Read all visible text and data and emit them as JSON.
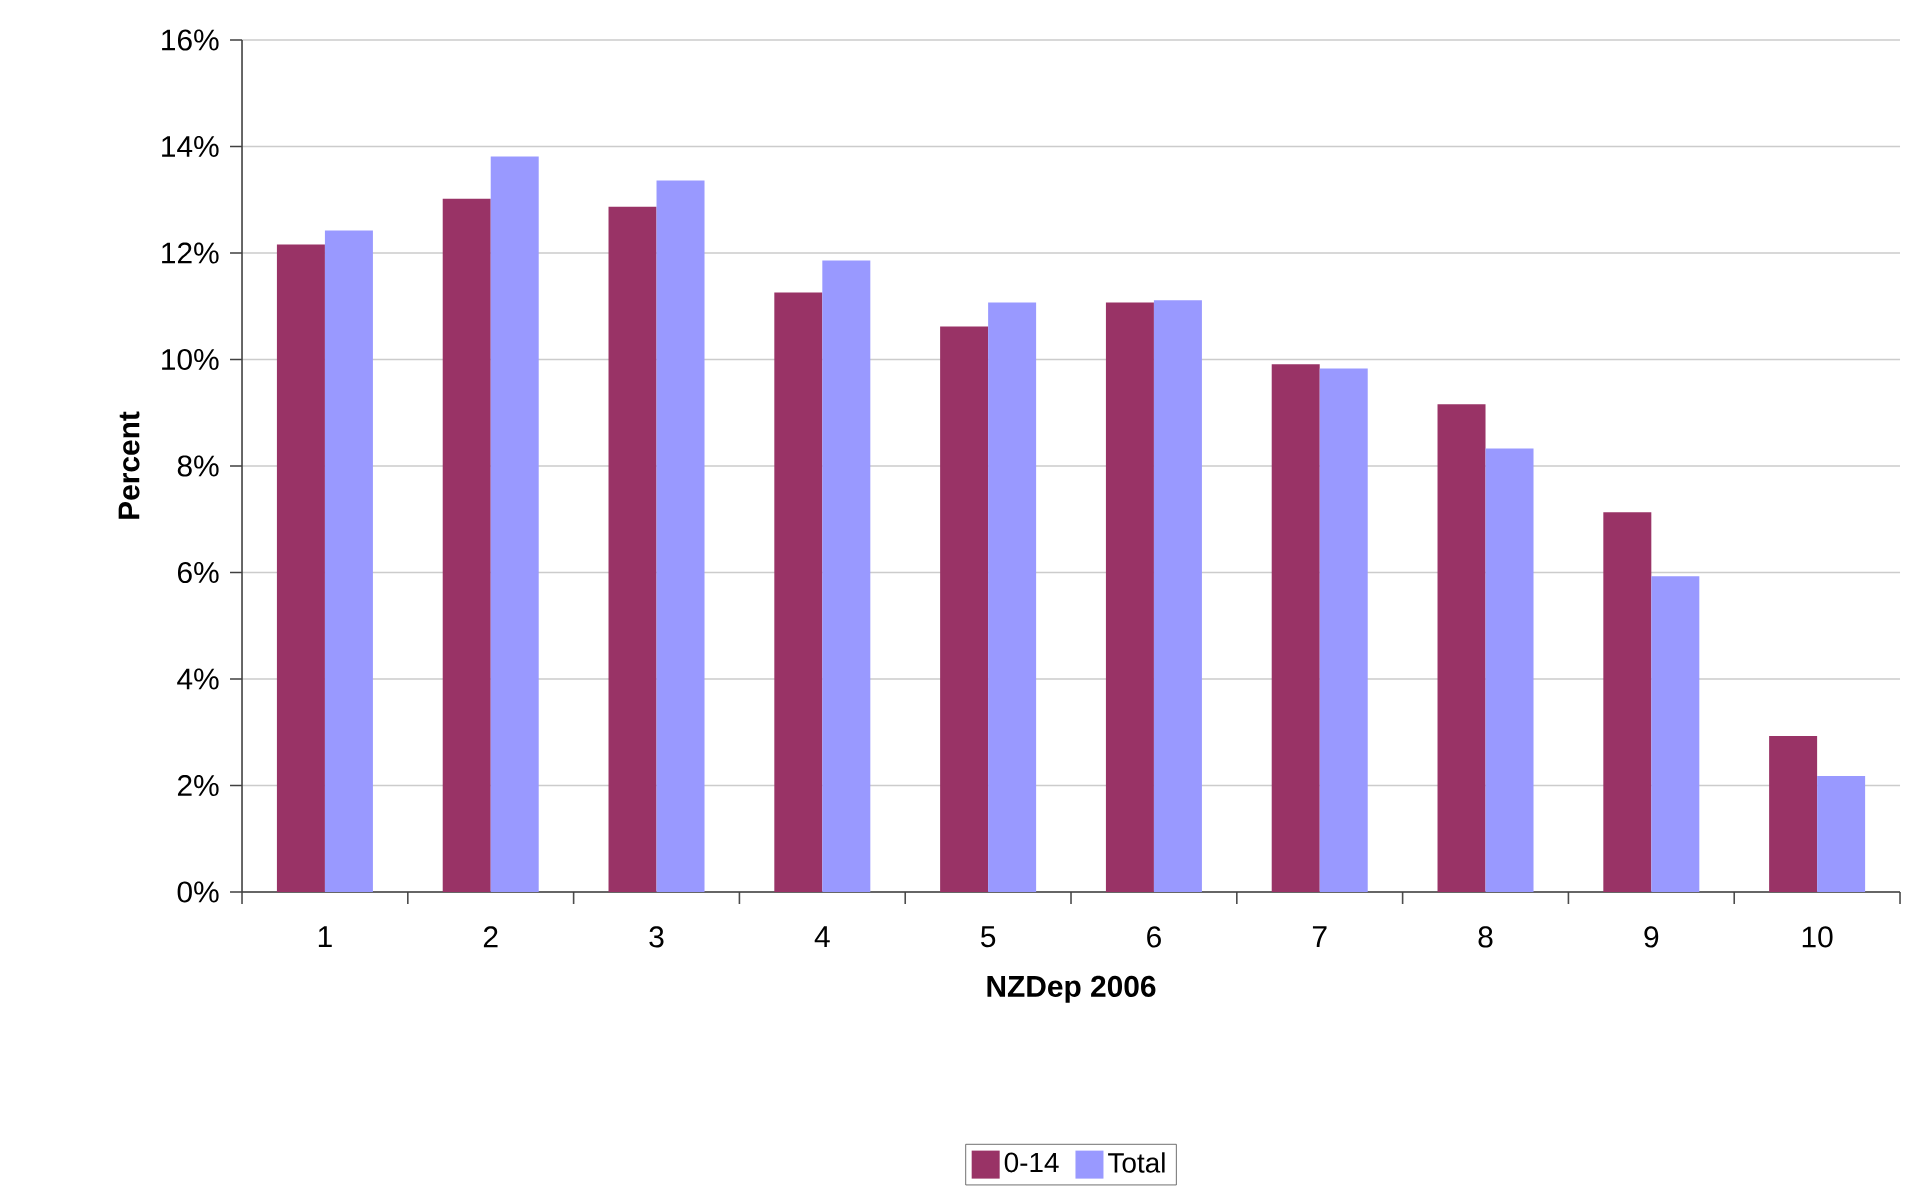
{
  "chart_data": {
    "type": "bar",
    "xlabel": "NZDep 2006",
    "ylabel": "Percent",
    "categories": [
      "1",
      "2",
      "3",
      "4",
      "5",
      "6",
      "7",
      "8",
      "9",
      "10"
    ],
    "series": [
      {
        "name": "0-14",
        "color": "#993366",
        "values": [
          12.16,
          13.02,
          12.87,
          11.26,
          10.62,
          11.07,
          9.91,
          9.16,
          7.13,
          2.93
        ]
      },
      {
        "name": "Total",
        "color": "#9999ff",
        "values": [
          12.42,
          13.81,
          13.36,
          11.86,
          11.07,
          11.11,
          9.83,
          8.33,
          5.93,
          2.18
        ]
      }
    ],
    "ylim": [
      0,
      16
    ],
    "yticks": [
      {
        "value": 0,
        "label": "0%"
      },
      {
        "value": 2,
        "label": "2%"
      },
      {
        "value": 4,
        "label": "4%"
      },
      {
        "value": 6,
        "label": "6%"
      },
      {
        "value": 8,
        "label": "8%"
      },
      {
        "value": 10,
        "label": "10%"
      },
      {
        "value": 12,
        "label": "12%"
      },
      {
        "value": 14,
        "label": "14%"
      },
      {
        "value": 16,
        "label": "16%"
      }
    ],
    "grid": "y",
    "legend": "bottom"
  }
}
